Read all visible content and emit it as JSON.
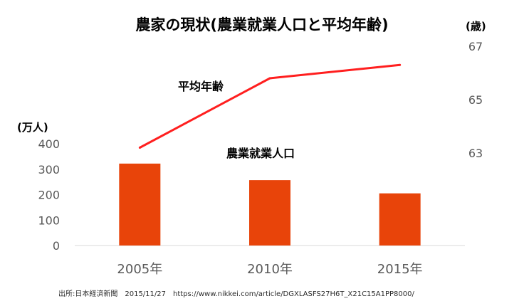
{
  "chart_data": {
    "type": "bar+line",
    "title": "農家の現状(農業就業人口と平均年齢)",
    "categories": [
      "2005年",
      "2010年",
      "2015年"
    ],
    "left_axis": {
      "unit_label": "(万人)",
      "ylim": [
        0,
        400
      ],
      "ticks": [
        "0",
        "100",
        "200",
        "300",
        "400"
      ]
    },
    "right_axis": {
      "unit_label": "(歳)",
      "ylim": [
        61,
        67
      ],
      "ticks": [
        "63",
        "65",
        "67"
      ]
    },
    "series": [
      {
        "name": "農業就業人口",
        "type": "bar",
        "axis": "left",
        "values": [
          322,
          257,
          205
        ],
        "color": "#e8440a"
      },
      {
        "name": "平均年齢",
        "type": "line",
        "axis": "right",
        "values": [
          63.2,
          65.8,
          66.3
        ],
        "color": "#ff1f1f"
      }
    ],
    "grid": false,
    "legend": "inline labels"
  },
  "footer": {
    "source": "出所:日本経済新聞　2015/11/27　https://www.nikkei.com/article/DGXLASFS27H6T_X21C15A1PP8000/"
  }
}
